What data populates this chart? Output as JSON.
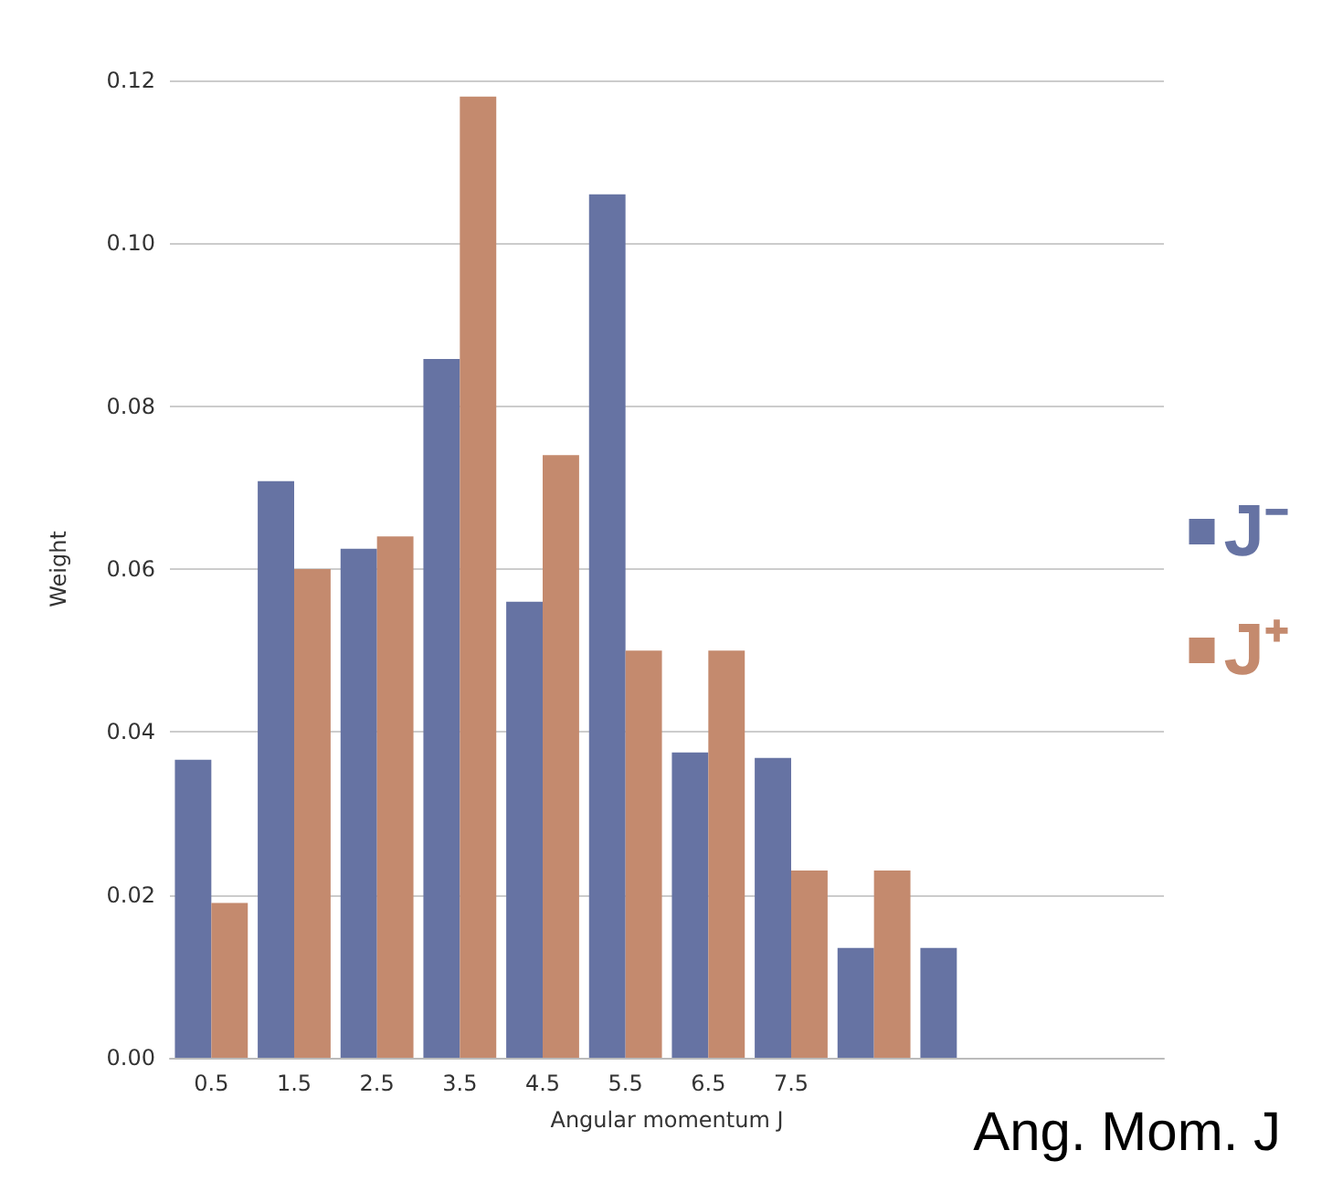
{
  "chart_data": {
    "type": "bar",
    "xlabel": "Angular momentum J",
    "ylabel": "Weight",
    "categories": [
      "0.5",
      "1.5",
      "2.5",
      "3.5",
      "4.5",
      "5.5",
      "6.5",
      "7.5",
      null,
      null,
      null,
      null
    ],
    "series": [
      {
        "name": "J⁻",
        "color": "#6673a3",
        "values": [
          0.0366,
          0.0708,
          0.0625,
          0.0858,
          0.056,
          0.106,
          0.0375,
          0.0368,
          0.0135,
          0.0135,
          null,
          null
        ]
      },
      {
        "name": "J⁺",
        "color": "#c48a6e",
        "values": [
          0.019,
          0.06,
          0.064,
          0.118,
          0.074,
          0.05,
          0.05,
          0.023,
          0.023,
          null,
          null,
          null
        ]
      }
    ],
    "ylim": [
      0,
      0.12
    ],
    "yticks": [
      {
        "value": 0,
        "label": "0.00"
      },
      {
        "value": 0.02,
        "label": "0.02"
      },
      {
        "value": 0.04,
        "label": "0.04"
      },
      {
        "value": 0.06,
        "label": "0.06"
      },
      {
        "value": 0.08,
        "label": "0.08"
      },
      {
        "value": 0.1,
        "label": "0.10"
      },
      {
        "value": 0.12,
        "label": "0.12"
      }
    ],
    "grid": "y",
    "legend": "right",
    "annotations": [
      "Ang. Mom. J"
    ]
  }
}
